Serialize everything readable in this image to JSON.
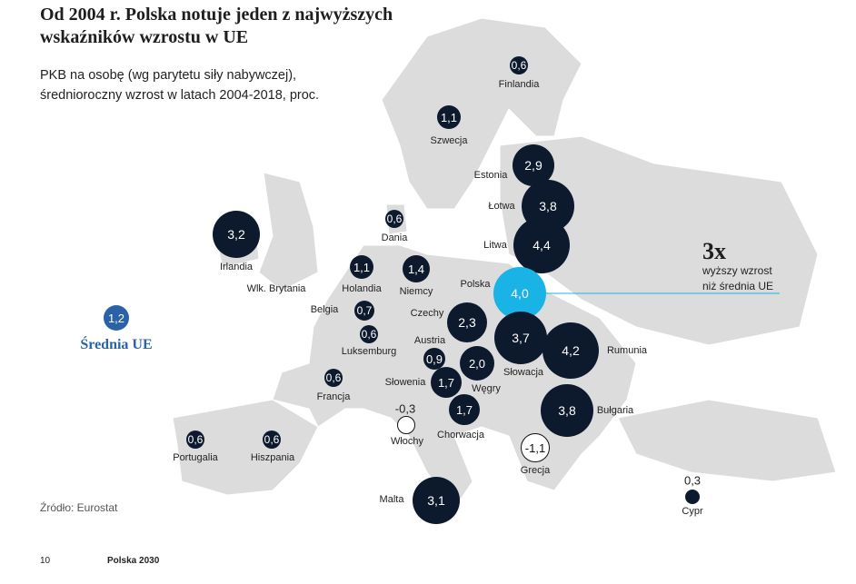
{
  "title": "Od 2004 r. Polska notuje jeden z najwyższych wskaźników wzrostu w UE",
  "subtitle_line1": "PKB na osobę (wg parytetu siły nabywczej),",
  "subtitle_line2": "średnioroczny wzrost w latach 2004-2018, proc.",
  "colors": {
    "bubble": "#0d1a2e",
    "poland": "#1ab3e6",
    "average": "#2a62a8",
    "land": "#dcdcdc",
    "negative": "#ffffff"
  },
  "countries": [
    {
      "name": "Finlandia",
      "value": "0,6"
    },
    {
      "name": "Szwecja",
      "value": "1,1"
    },
    {
      "name": "Estonia",
      "value": "2,9"
    },
    {
      "name": "Łotwa",
      "value": "3,8"
    },
    {
      "name": "Litwa",
      "value": "4,4"
    },
    {
      "name": "Dania",
      "value": "0,6"
    },
    {
      "name": "Irlandia",
      "value": "3,2"
    },
    {
      "name": "Holandia",
      "value": "1,1"
    },
    {
      "name": "Niemcy",
      "value": "1,4"
    },
    {
      "name": "Polska",
      "value": "4,0"
    },
    {
      "name": "Belgia",
      "value": "0,7"
    },
    {
      "name": "Luksemburg",
      "value": "0,6"
    },
    {
      "name": "Czechy",
      "value": "2,3"
    },
    {
      "name": "Austria",
      "value": "0,9"
    },
    {
      "name": "Słowacja",
      "value": "3,7"
    },
    {
      "name": "Rumunia",
      "value": "4,2"
    },
    {
      "name": "Węgry",
      "value": "2,0"
    },
    {
      "name": "Słowenia",
      "value": "1,7"
    },
    {
      "name": "Francja",
      "value": "0,6"
    },
    {
      "name": "Chorwacja",
      "value": "1,7"
    },
    {
      "name": "Bułgaria",
      "value": "3,8"
    },
    {
      "name": "Włochy",
      "value": "-0,3"
    },
    {
      "name": "Grecja",
      "value": "-1,1"
    },
    {
      "name": "Portugalia",
      "value": "0,6"
    },
    {
      "name": "Hiszpania",
      "value": "0,6"
    },
    {
      "name": "Malta",
      "value": "3,1"
    },
    {
      "name": "Cypr",
      "value": "0,3"
    },
    {
      "name": "Wlk. Brytania",
      "value": null
    }
  ],
  "average": {
    "label": "Średnia UE",
    "value": "1,2"
  },
  "annotation": {
    "big": "3x",
    "line1": "wyższy wzrost",
    "line2": "niż średnia UE"
  },
  "source": "Źródło: Eurostat",
  "footer": {
    "page": "10",
    "publication": "Polska 2030"
  }
}
